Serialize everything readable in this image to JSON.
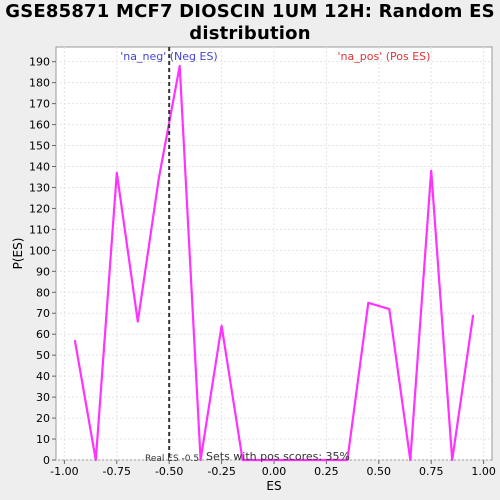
{
  "chart_data": {
    "type": "line",
    "title_line1": "GSE85871 MCF7 DIOSCIN 1UM 12H: Random ES",
    "title_line2": "distribution",
    "xlabel": "ES",
    "ylabel": "P(ES)",
    "xlim": [
      -1.04,
      1.04
    ],
    "ylim": [
      0,
      197
    ],
    "x_ticks": [
      "-1.00",
      "-0.75",
      "-0.50",
      "-0.25",
      "0.00",
      "0.25",
      "0.50",
      "0.75",
      "1.00"
    ],
    "x_tick_values": [
      -1.0,
      -0.75,
      -0.5,
      -0.25,
      0.0,
      0.25,
      0.5,
      0.75,
      1.0
    ],
    "y_ticks": [
      0,
      10,
      20,
      30,
      40,
      50,
      60,
      70,
      80,
      90,
      100,
      110,
      120,
      130,
      140,
      150,
      160,
      170,
      180,
      190
    ],
    "grid": true,
    "series": [
      {
        "color": "#ff33ff",
        "x": [
          -0.95,
          -0.85,
          -0.75,
          -0.65,
          -0.55,
          -0.45,
          -0.35,
          -0.25,
          -0.15,
          -0.05,
          0.05,
          0.15,
          0.25,
          0.35,
          0.45,
          0.55,
          0.65,
          0.75,
          0.85,
          0.95
        ],
        "y": [
          57,
          0,
          137,
          66,
          134,
          188,
          0,
          64,
          0,
          0,
          0,
          0,
          0,
          0,
          75,
          72,
          0,
          138,
          0,
          69
        ]
      }
    ],
    "real_es_x": -0.5,
    "annotations": {
      "neg_label": "'na_neg' (Neg ES)",
      "pos_label": "'na_pos' (Pos ES)",
      "neg_color": "#4444cc",
      "pos_color": "#dd3333",
      "real_es_label": "Real ES -0.5",
      "pos_scores_label": "Sets with pos scores: 35%"
    }
  }
}
